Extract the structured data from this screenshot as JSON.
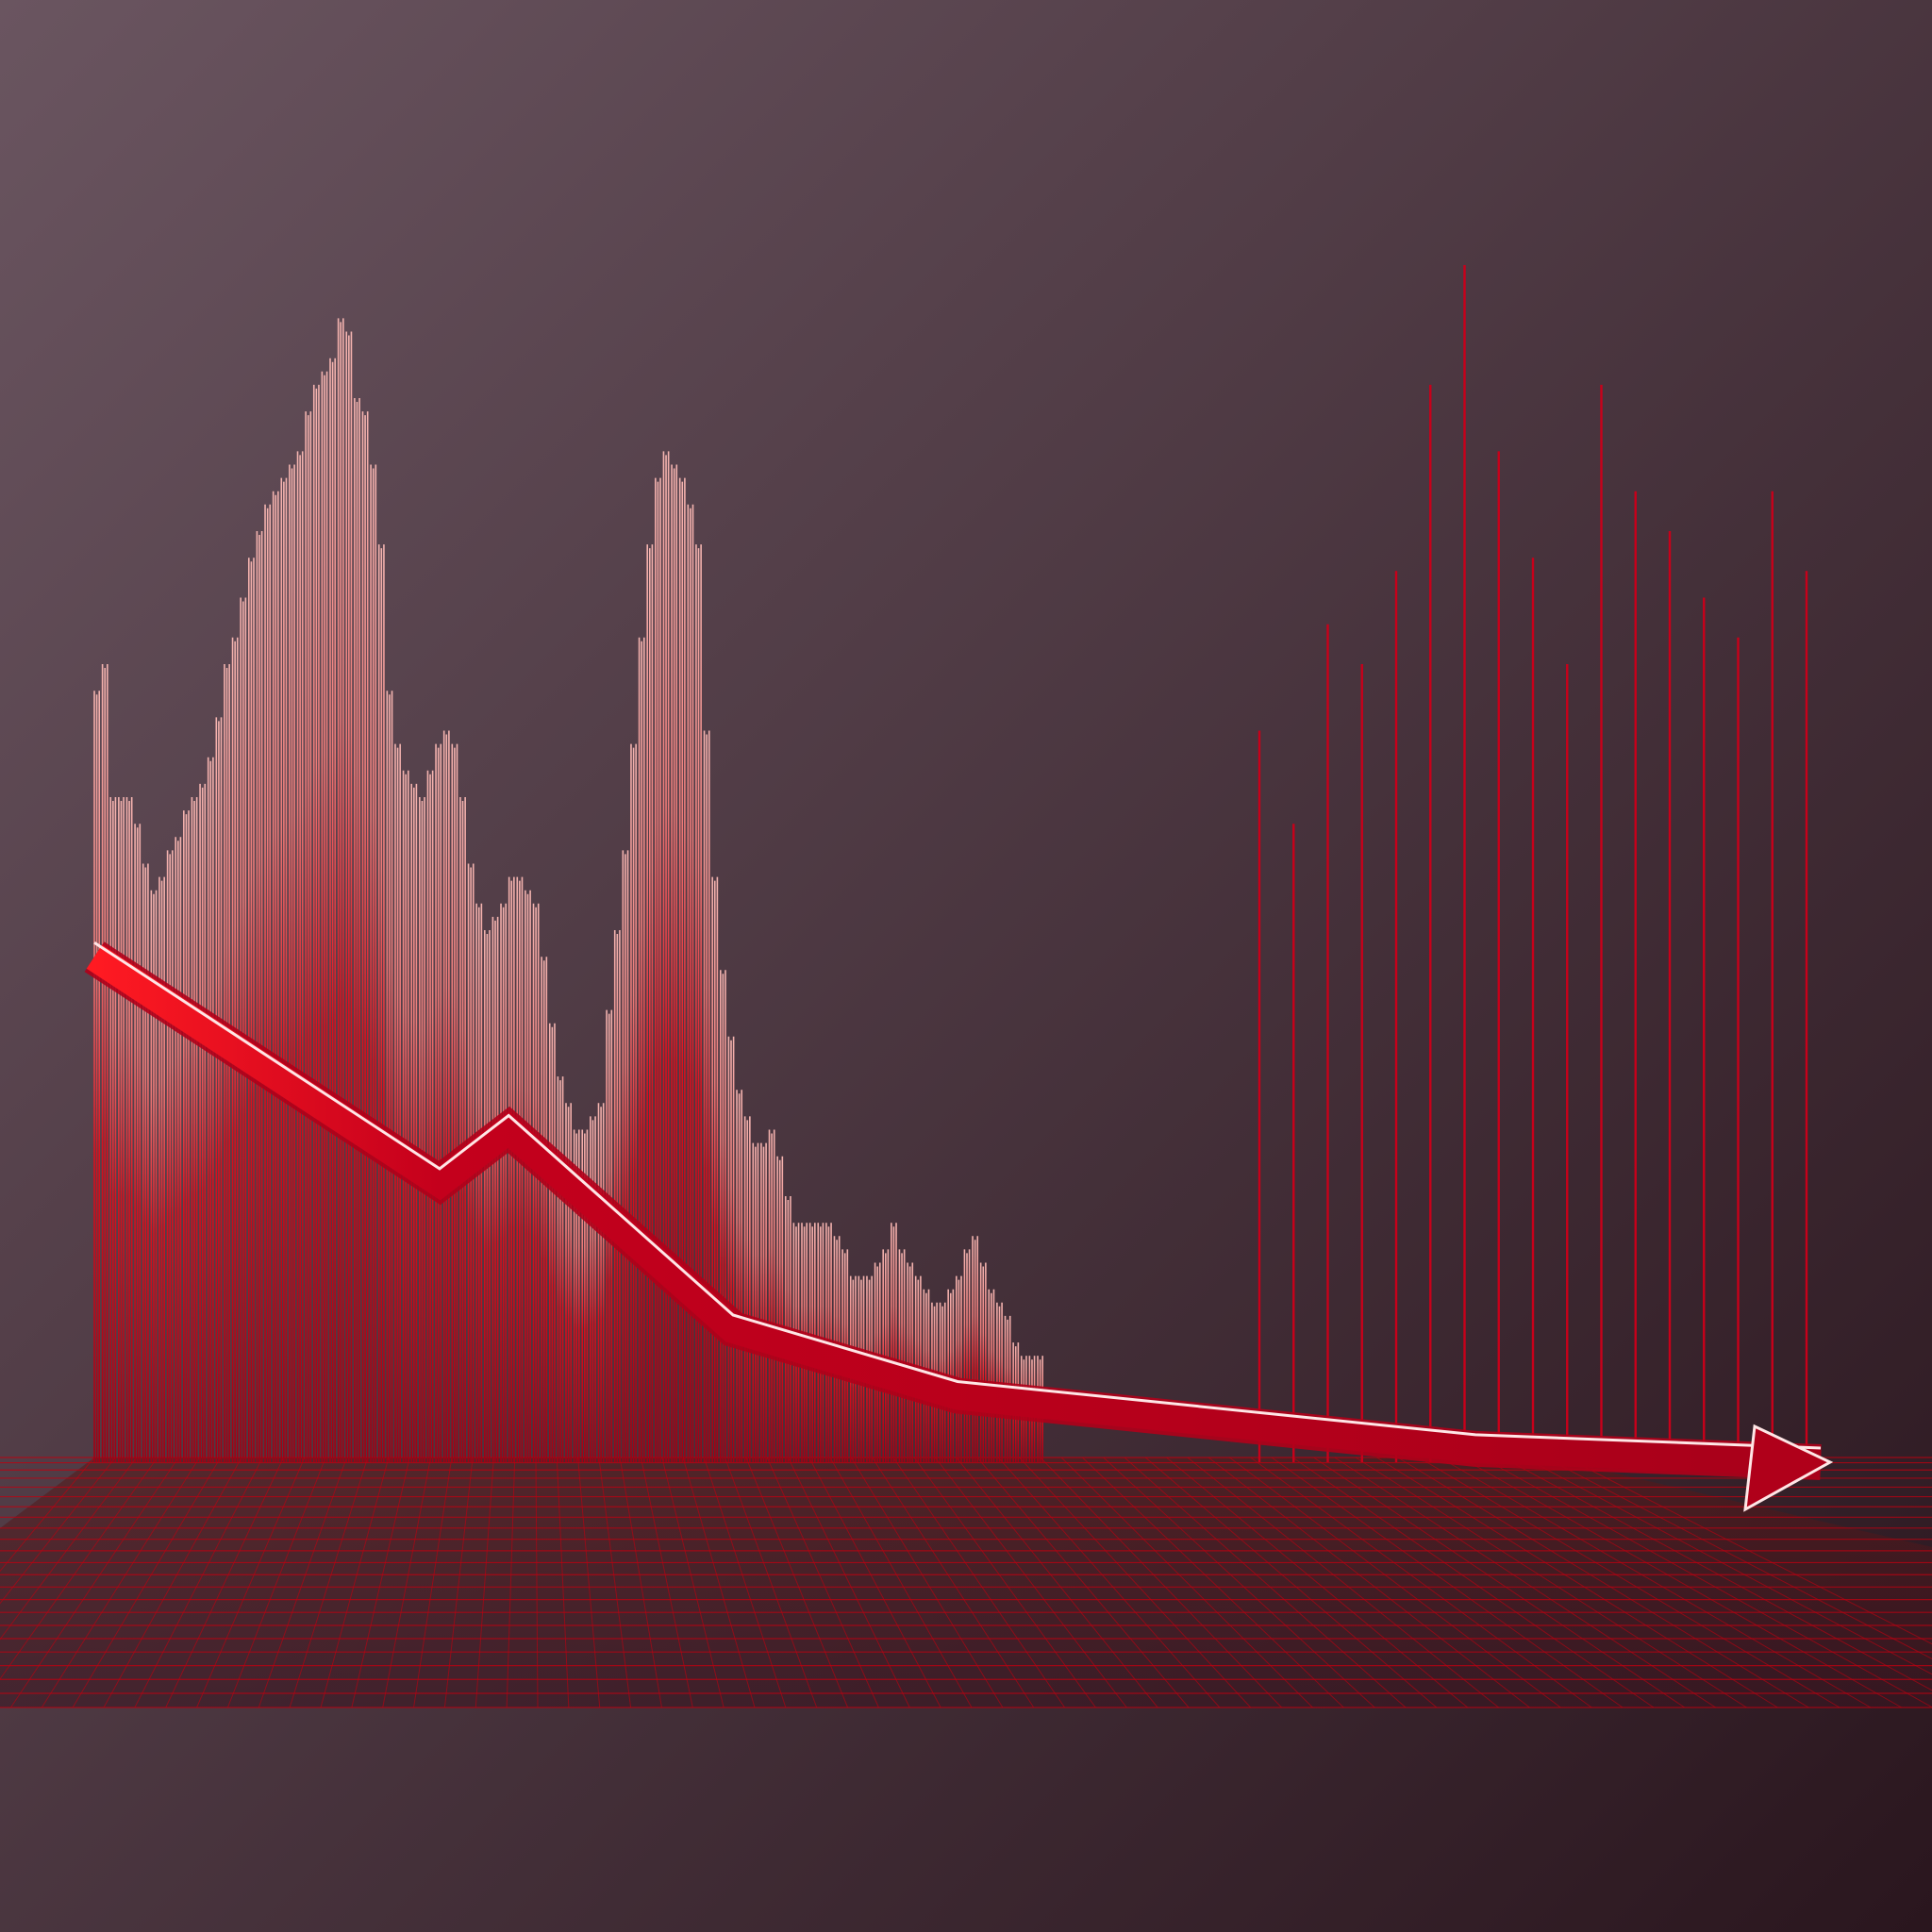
{
  "colors": {
    "bg_top": "#6a5560",
    "bg_bottom": "#2a161e",
    "bar_tip": "#f4b4b0",
    "bar_body": "#d8101e",
    "accent": "#c8001a",
    "arrow_outline": "#ffe6e6",
    "grid": "#c00010"
  },
  "chart_data": {
    "type": "bar",
    "title": "",
    "xlabel": "",
    "ylabel": "",
    "ylim": [
      0,
      100
    ],
    "grid": true,
    "legend": "none",
    "series": [
      {
        "values": [
          58,
          60,
          50,
          50,
          50,
          48,
          45,
          43,
          44,
          46,
          47,
          49,
          50,
          51,
          53,
          56,
          60,
          62,
          65,
          68,
          70,
          72,
          73,
          74,
          75,
          76,
          79,
          81,
          82,
          83,
          86,
          85,
          80,
          79,
          75,
          69,
          58,
          54,
          52,
          51,
          50,
          52,
          54,
          55,
          54,
          50,
          45,
          42,
          40,
          41,
          42,
          44,
          44,
          43,
          42,
          38,
          33,
          29,
          27,
          25,
          25,
          26,
          27,
          34,
          40,
          46,
          54,
          62,
          69,
          74,
          76,
          75,
          74,
          72,
          69,
          55,
          44,
          37,
          32,
          28,
          26,
          24,
          24,
          25,
          23,
          20,
          18,
          18,
          18,
          18,
          18,
          17,
          16,
          14,
          14,
          14,
          15,
          16,
          18,
          16,
          15,
          14,
          13,
          12,
          12,
          13,
          14,
          16,
          17,
          15,
          13,
          12,
          11,
          9,
          8,
          8,
          8
        ]
      },
      {
        "values": [
          55,
          48,
          63,
          60,
          67,
          81,
          90,
          76,
          68,
          60,
          81,
          73,
          70,
          65,
          62,
          73,
          67
        ]
      }
    ],
    "trend_line": {
      "x": [
        0,
        20,
        24,
        37,
        50,
        80,
        100
      ],
      "y": [
        38,
        21,
        25,
        10,
        5,
        1,
        0
      ]
    }
  }
}
